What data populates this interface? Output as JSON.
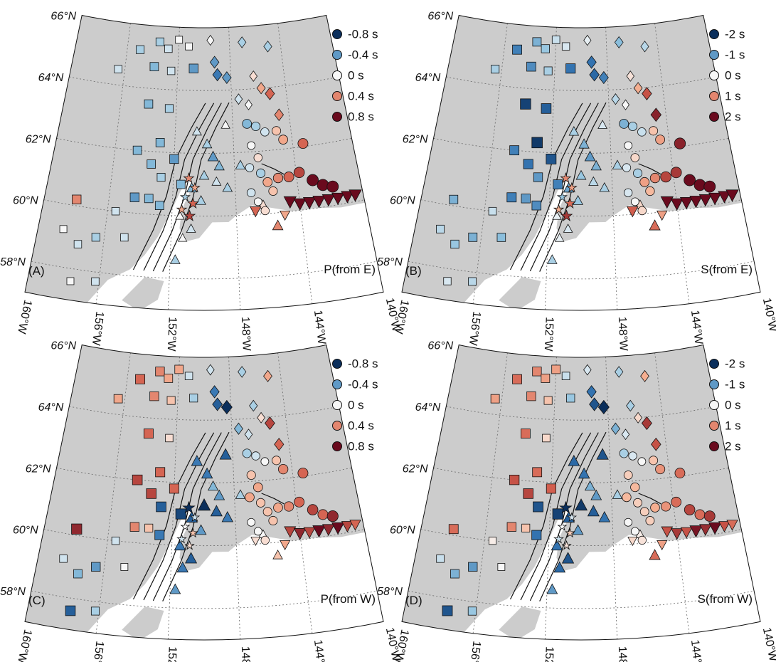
{
  "map": {
    "lon_range": [
      -160,
      -140
    ],
    "lat_range": [
      57,
      66
    ],
    "lat_ticks": [
      {
        "value": 66,
        "label": "66°N"
      },
      {
        "value": 64,
        "label": "64°N"
      },
      {
        "value": 62,
        "label": "62°N"
      },
      {
        "value": 60,
        "label": "60°N"
      },
      {
        "value": 58,
        "label": "58°N"
      }
    ],
    "lon_ticks": [
      {
        "value": -160,
        "label": "160°W"
      },
      {
        "value": -156,
        "label": "156°W"
      },
      {
        "value": -152,
        "label": "152°W"
      },
      {
        "value": -148,
        "label": "148°W"
      },
      {
        "value": -144,
        "label": "144°W"
      },
      {
        "value": -140,
        "label": "140°W"
      }
    ],
    "land_color": "#cccccc",
    "colormap": [
      "#0b2f5c",
      "#2e6fae",
      "#8fc2de",
      "#f7f7f7",
      "#f6b294",
      "#d05a4a",
      "#6a0a1e"
    ],
    "station_groups": [
      {
        "shape": "square",
        "lon": [
          -156.5,
          -155,
          -153.5,
          -152.8,
          -152,
          -151.2,
          -153.8,
          -152.5,
          -150.8,
          -154,
          -152.5,
          -153,
          -154.5,
          -153.5,
          -152.8,
          -158,
          -155.5,
          -154.4,
          -153.5,
          -152.8,
          -158.5,
          -157.5,
          -156.5,
          -154.8,
          -157.6,
          -156.2,
          -152,
          -151.5
        ],
        "lat": [
          64.5,
          65.2,
          65.5,
          65.3,
          65.6,
          65.4,
          64.7,
          64.6,
          64.7,
          63.5,
          63.4,
          62.3,
          62,
          61.6,
          61.2,
          60.2,
          60,
          60.5,
          60.5,
          60.3,
          59.2,
          58.8,
          59.1,
          59.2,
          57.6,
          57.7,
          61.8,
          61
        ]
      },
      {
        "shape": "diamond",
        "lon": [
          -149.5,
          -147,
          -145,
          -149.2,
          -149,
          -148.3,
          -146.3,
          -145.8,
          -147.5,
          -146.8,
          -145.2,
          -144.7
        ],
        "lat": [
          65.6,
          65.5,
          65.3,
          64.9,
          64.5,
          64.4,
          64.4,
          64.0,
          63.7,
          63.5,
          63.8,
          63.1
        ]
      },
      {
        "shape": "triangle",
        "lon": [
          -150.5,
          -149.8,
          -149.4,
          -149,
          -150,
          -149.2,
          -148.5,
          -150.8,
          -150.2,
          -151.5,
          -150.8,
          -151.3,
          -151.7,
          -148.5,
          -147.6,
          -146.3,
          -145.5
        ],
        "lat": [
          62.7,
          62.3,
          61.9,
          61.6,
          61.3,
          61.1,
          60.9,
          60.9,
          60.5,
          60.0,
          59.6,
          59.3,
          58.6,
          62.9,
          61.6,
          60.3,
          59.6
        ]
      },
      {
        "shape": "circle",
        "lon": [
          -147,
          -146.4,
          -145.8,
          -145,
          -144.6,
          -143.3,
          -146.8,
          -146.4,
          -147,
          -146.3,
          -145.9,
          -145.2,
          -144.5,
          -143.8,
          -143,
          -142.4,
          -141.8,
          -147,
          -146.6,
          -146.2,
          -145.6
        ],
        "lat": [
          62.9,
          62.8,
          62.6,
          62.6,
          62.3,
          62.1,
          62.2,
          61.8,
          61.5,
          61.3,
          61.0,
          61.1,
          61.1,
          61.2,
          60.9,
          60.7,
          60.6,
          60.7,
          60.4,
          60.1,
          60.7
        ]
      },
      {
        "shape": "triangle-down",
        "lon": [
          -144.6,
          -144,
          -143.4,
          -142.8,
          -142.2,
          -141.6,
          -141,
          -140.5,
          -146.8,
          -145
        ],
        "lat": [
          60.3,
          60.2,
          60.2,
          60.2,
          60.2,
          60.2,
          60.2,
          60.2,
          60.1,
          59.9
        ]
      },
      {
        "shape": "star",
        "lon": [
          -151,
          -150.6,
          -151.2,
          -150.7,
          -151.4,
          -150.9
        ],
        "lat": [
          61.2,
          60.9,
          60.6,
          60.4,
          60.2,
          60.0
        ]
      }
    ],
    "panels": [
      {
        "tag": "(A)",
        "title": "P(from E)",
        "clim": [
          -0.8,
          0.8
        ],
        "legend": [
          {
            "value": -0.8,
            "label": "-0.8 s"
          },
          {
            "value": -0.4,
            "label": "-0.4 s"
          },
          {
            "value": 0,
            "label": "0 s"
          },
          {
            "value": 0.4,
            "label": "0.4 s"
          },
          {
            "value": 0.8,
            "label": "0.8 s"
          }
        ],
        "residuals": [
          [
            -0.1,
            -0.2,
            -0.2,
            -0.1,
            0,
            0,
            -0.3,
            -0.1,
            -0.4,
            -0.3,
            -0.2,
            -0.3,
            -0.3,
            -0.3,
            -0.2,
            0.4,
            -0.1,
            -0.4,
            -0.3,
            -0.3,
            0,
            -0.1,
            -0.2,
            -0.1,
            0,
            -0.1,
            -0.4,
            -0.3
          ],
          [
            0,
            -0.2,
            -0.2,
            -0.4,
            -0.5,
            -0.4,
            0.1,
            0.3,
            -0.1,
            0,
            0.5,
            0.4
          ],
          [
            -0.1,
            -0.2,
            -0.4,
            -0.3,
            -0.2,
            -0.1,
            -0.2,
            -0.3,
            -0.2,
            0,
            -0.1,
            0,
            -0.2,
            0,
            -0.2,
            0.1,
            0.4
          ],
          [
            -0.3,
            -0.2,
            -0.1,
            0.2,
            0.3,
            0.5,
            0,
            0.1,
            -0.1,
            -0.2,
            0.3,
            0.4,
            0.5,
            0.6,
            0.8,
            0.8,
            0.8,
            -0.1,
            0,
            0.1,
            0.2
          ],
          [
            0.8,
            0.8,
            0.8,
            0.8,
            0.8,
            0.8,
            0.8,
            0.8,
            0.5,
            0.3
          ],
          [
            0.4,
            0.3,
            -0.2,
            0.5,
            0.3,
            0.6
          ]
        ]
      },
      {
        "tag": "(B)",
        "title": "S(from E)",
        "clim": [
          -2,
          2
        ],
        "legend": [
          {
            "value": -2,
            "label": "-2 s"
          },
          {
            "value": -1,
            "label": "-1 s"
          },
          {
            "value": 0,
            "label": "0 s"
          },
          {
            "value": 1,
            "label": "1 s"
          },
          {
            "value": 2,
            "label": "2 s"
          }
        ],
        "residuals": [
          [
            -0.5,
            -1.2,
            -0.8,
            -0.6,
            -0.3,
            -0.2,
            -1.1,
            -0.5,
            -1.3,
            -1.8,
            -1.5,
            -1.9,
            -1.2,
            -1.3,
            -1.0,
            -0.8,
            -0.3,
            -1.2,
            -1.0,
            -1.1,
            -0.4,
            -0.6,
            -0.8,
            -0.7,
            -0.2,
            -0.4,
            -1.6,
            -1.2
          ],
          [
            -0.1,
            -0.7,
            -0.4,
            -1.3,
            -1.4,
            -1.2,
            0.2,
            0.7,
            -0.4,
            0,
            1.4,
            1.8
          ],
          [
            -0.5,
            -0.8,
            -1.0,
            -0.8,
            -0.6,
            -0.4,
            -0.5,
            -0.9,
            -0.6,
            -0.1,
            -0.2,
            -0.1,
            -0.5,
            -0.2,
            -0.5,
            0.3,
            1.2
          ],
          [
            -0.8,
            -0.5,
            -0.3,
            0.5,
            0.8,
            1.8,
            0,
            0.3,
            -0.2,
            -0.5,
            0.8,
            1.0,
            1.5,
            1.6,
            2,
            2,
            2,
            -0.2,
            0,
            0.3,
            0.6
          ],
          [
            2,
            2,
            2,
            2,
            2,
            2,
            2,
            2,
            1.3,
            0.8
          ],
          [
            1,
            0.8,
            -0.6,
            1.2,
            0.7,
            1.6
          ]
        ]
      },
      {
        "tag": "(C)",
        "title": "P(from W)",
        "clim": [
          -0.8,
          0.8
        ],
        "legend": [
          {
            "value": -0.8,
            "label": "-0.8 s"
          },
          {
            "value": -0.4,
            "label": "-0.4 s"
          },
          {
            "value": 0,
            "label": "0 s"
          },
          {
            "value": 0.4,
            "label": "0.4 s"
          },
          {
            "value": 0.8,
            "label": "0.8 s"
          }
        ],
        "residuals": [
          [
            0.3,
            0.5,
            0.4,
            0.3,
            0.3,
            -0.1,
            0.4,
            0.2,
            -0.2,
            0.5,
            0.1,
            0.5,
            0.6,
            0.6,
            -0.6,
            0.7,
            -0.1,
            0.4,
            0.2,
            -0.5,
            -0.1,
            -0.3,
            -0.4,
            0,
            -0.6,
            -0.2,
            0.5,
            -0.7
          ],
          [
            -0.1,
            -0.2,
            0.3,
            -0.5,
            -0.6,
            -0.8,
            -0.2,
            0.1,
            -0.3,
            -0.1,
            0.6,
            0.5
          ],
          [
            -0.5,
            -0.5,
            -0.3,
            -0.4,
            -0.8,
            -0.6,
            -0.5,
            -0.6,
            -0.4,
            -0.5,
            -0.6,
            -0.5,
            -0.4,
            -0.6,
            -0.2,
            0,
            0.2
          ],
          [
            -0.2,
            -0.1,
            0,
            0.2,
            0.4,
            0.5,
            0.2,
            0.3,
            0.3,
            0.2,
            0.2,
            0.3,
            0.4,
            0.5,
            0.6,
            0.5,
            0.7,
            0,
            0,
            0.1,
            0.2
          ],
          [
            0.6,
            0.7,
            0.6,
            0.8,
            0.7,
            0.8,
            0.6,
            0.5,
            0.1,
            0.3
          ],
          [
            -0.8,
            -0.1,
            0,
            0.2,
            -0.1,
            0.1
          ]
        ]
      },
      {
        "tag": "(D)",
        "title": "S(from W)",
        "clim": [
          -2,
          2
        ],
        "legend": [
          {
            "value": -2,
            "label": "-2 s"
          },
          {
            "value": -1,
            "label": "-1 s"
          },
          {
            "value": 0,
            "label": "0 s"
          },
          {
            "value": 1,
            "label": "1 s"
          },
          {
            "value": 2,
            "label": "2 s"
          }
        ],
        "residuals": [
          [
            0.8,
            1.2,
            1,
            0.8,
            0.8,
            -0.3,
            1,
            0.5,
            -0.6,
            1.2,
            0.3,
            1.2,
            1.4,
            1.5,
            -1.6,
            1.2,
            0.1,
            1,
            0.5,
            -1.3,
            -0.3,
            -0.8,
            -1,
            0,
            -1.6,
            -0.6,
            1.3,
            -1.8
          ],
          [
            -0.2,
            -0.5,
            0.7,
            -1.3,
            -1.6,
            -2,
            -0.5,
            0.3,
            -0.8,
            -0.2,
            1.6,
            1.4
          ],
          [
            -1.4,
            -1.3,
            -0.8,
            -1,
            -1.9,
            -1.5,
            -1.3,
            -1.5,
            -1,
            -1.3,
            -1.6,
            -1.4,
            -1,
            -1.6,
            -0.5,
            0.1,
            1.2
          ],
          [
            -0.5,
            -0.2,
            0,
            0.5,
            0.9,
            1.2,
            0.4,
            0.6,
            0.6,
            0.4,
            0.4,
            0.7,
            0.9,
            1.2,
            1.5,
            1.2,
            1.6,
            0,
            0,
            0.2,
            0.4
          ],
          [
            1.4,
            1.6,
            1.4,
            1.9,
            1.7,
            2,
            1.4,
            1.2,
            0.3,
            0.8
          ],
          [
            -2,
            -0.2,
            0,
            0.4,
            -0.3,
            0.2
          ]
        ]
      }
    ]
  }
}
